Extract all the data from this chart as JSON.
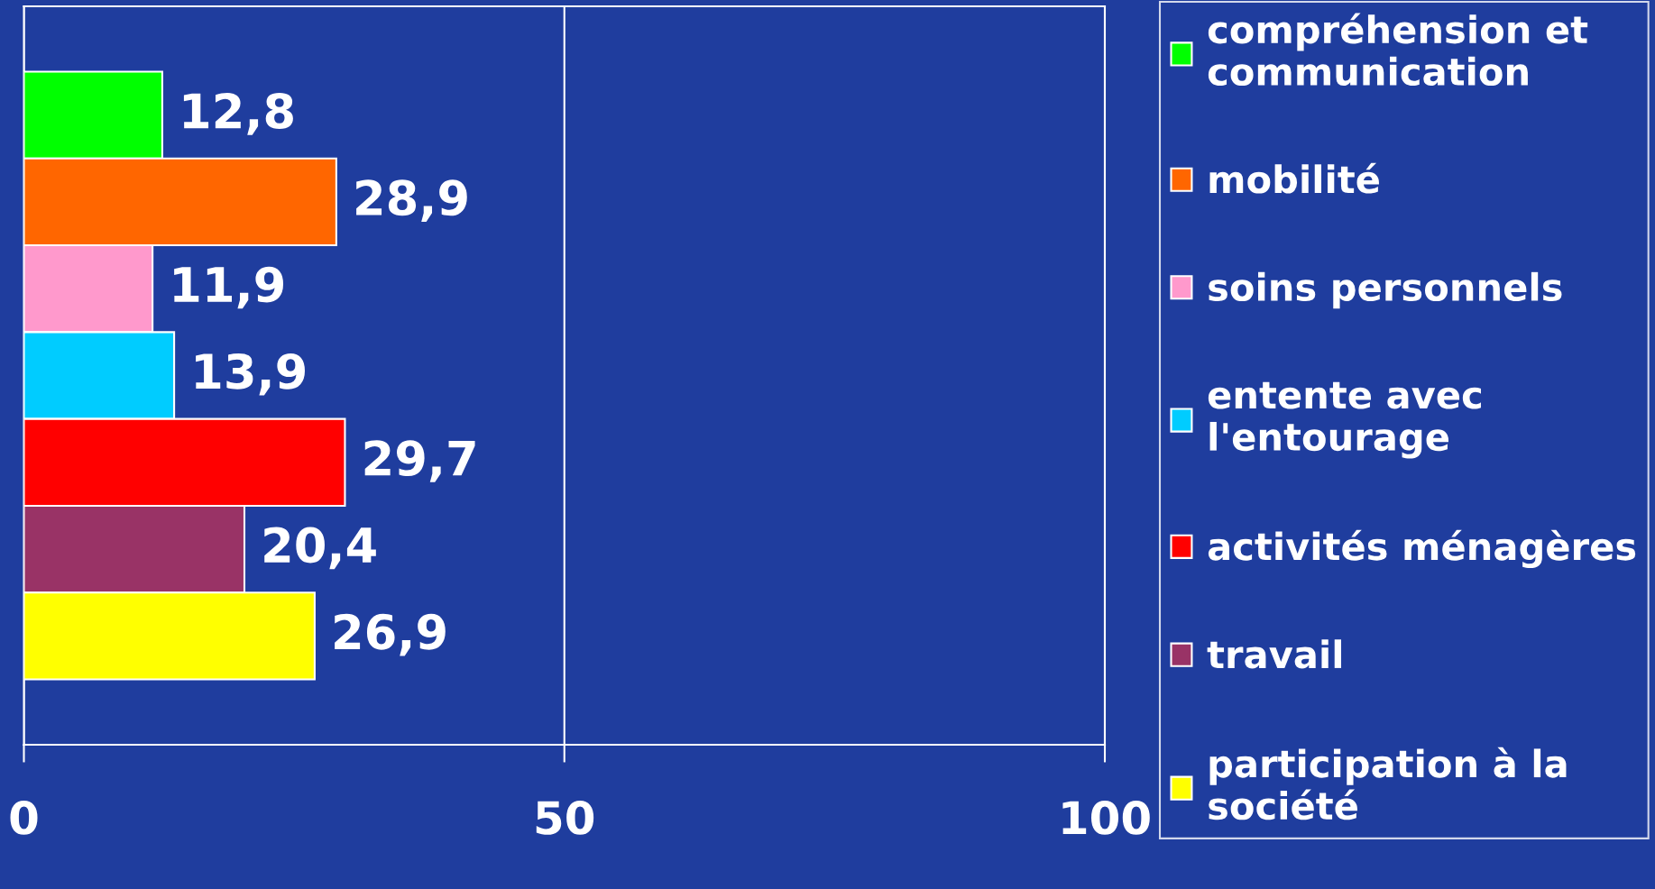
{
  "chart_data": {
    "type": "bar",
    "orientation": "horizontal",
    "categories": [
      null
    ],
    "series": [
      {
        "name": "compréhension et communication",
        "color": "#00ff00",
        "values": [
          12.8
        ],
        "value_labels": [
          "12,8"
        ]
      },
      {
        "name": "mobilité",
        "color": "#ff6600",
        "values": [
          28.9
        ],
        "value_labels": [
          "28,9"
        ]
      },
      {
        "name": "soins personnels",
        "color": "#ff99cc",
        "values": [
          11.9
        ],
        "value_labels": [
          "11,9"
        ]
      },
      {
        "name": "entente avec l'entourage",
        "color": "#00ccff",
        "values": [
          13.9
        ],
        "value_labels": [
          "13,9"
        ]
      },
      {
        "name": "activités ménagères",
        "color": "#ff0000",
        "values": [
          29.7
        ],
        "value_labels": [
          "29,7"
        ]
      },
      {
        "name": "travail",
        "color": "#993366",
        "values": [
          20.4
        ],
        "value_labels": [
          "20,4"
        ]
      },
      {
        "name": "participation à la société",
        "color": "#ffff00",
        "values": [
          26.9
        ],
        "value_labels": [
          "26,9"
        ]
      }
    ],
    "xlim": [
      0,
      100
    ],
    "xticks": [
      0,
      50,
      100
    ],
    "grid": "x",
    "legend": "right",
    "tick_labels": "x"
  }
}
